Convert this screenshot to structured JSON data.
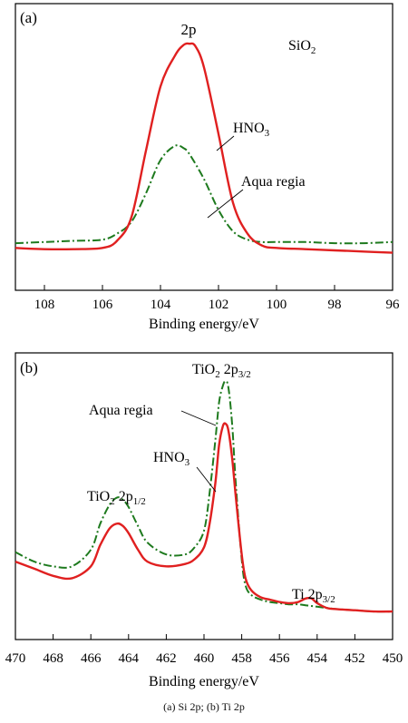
{
  "colors": {
    "hno3": "#e02020",
    "aqua_regia": "#1e7a1e",
    "axis": "#000000"
  },
  "caption": "(a) Si 2p; (b) Ti 2p",
  "chart_data": [
    {
      "type": "line",
      "panel_label": "(a)",
      "xlabel": "Binding energy/eV",
      "x_reversed": true,
      "xlim": [
        109,
        96
      ],
      "xticks": [
        108,
        106,
        104,
        102,
        100,
        98,
        96
      ],
      "y_ticks_shown": false,
      "ylim": [
        0,
        1.1
      ],
      "annotations": {
        "peak": "2p",
        "compound": "SiO",
        "compound_sub": "2",
        "hno3_label": "HNO",
        "hno3_label_sub": "3",
        "aqua_label": "Aqua regia"
      },
      "series": [
        {
          "name": "HNO3",
          "style": "solid",
          "x": [
            109,
            108,
            107,
            106,
            105.5,
            105,
            104.5,
            104,
            103.5,
            103.2,
            103,
            102.8,
            102.5,
            102,
            101.5,
            101,
            100.5,
            100,
            99,
            98,
            97,
            96
          ],
          "y": [
            0.14,
            0.135,
            0.135,
            0.14,
            0.17,
            0.27,
            0.55,
            0.82,
            0.95,
            0.995,
            1.0,
            0.99,
            0.9,
            0.62,
            0.33,
            0.2,
            0.15,
            0.14,
            0.135,
            0.13,
            0.125,
            0.12
          ]
        },
        {
          "name": "Aqua regia",
          "style": "dashdot",
          "x": [
            109,
            108,
            107,
            106,
            105.5,
            105,
            104.5,
            104,
            103.5,
            103.2,
            103,
            102.5,
            102,
            101.5,
            101,
            100.5,
            100,
            99,
            98,
            97,
            96
          ],
          "y": [
            0.16,
            0.165,
            0.17,
            0.175,
            0.2,
            0.25,
            0.37,
            0.51,
            0.57,
            0.56,
            0.535,
            0.43,
            0.3,
            0.21,
            0.175,
            0.165,
            0.165,
            0.165,
            0.16,
            0.16,
            0.165
          ]
        }
      ]
    },
    {
      "type": "line",
      "panel_label": "(b)",
      "xlabel": "Binding energy/eV",
      "x_reversed": true,
      "xlim": [
        470,
        450
      ],
      "xticks": [
        470,
        468,
        466,
        464,
        462,
        460,
        458,
        456,
        454,
        452,
        450
      ],
      "y_ticks_shown": false,
      "ylim": [
        0,
        1.1
      ],
      "annotations": {
        "peak_main": "TiO",
        "peak_main_sub": "2",
        "peak_main_orbital": "2p",
        "peak_main_orbital_sub": "3/2",
        "peak_minor": "TiO",
        "peak_minor_sub": "2",
        "peak_minor_orbital": "2p",
        "peak_minor_orbital_sub": "1/2",
        "metal_peak": "Ti 2p",
        "metal_peak_sub": "3/2",
        "aqua_label": "Aqua regia",
        "hno3_label": "HNO",
        "hno3_label_sub": "3"
      },
      "series": [
        {
          "name": "HNO3",
          "style": "solid",
          "x": [
            470,
            469,
            468,
            467,
            466,
            465.5,
            465,
            464.6,
            464.3,
            464,
            463.5,
            463,
            462,
            461,
            460.5,
            460,
            459.7,
            459.4,
            459.2,
            459,
            458.85,
            458.7,
            458.5,
            458.3,
            458,
            457.8,
            457.5,
            457,
            456.5,
            456,
            455.5,
            455,
            454.6,
            454.3,
            454,
            453.5,
            453,
            452,
            451,
            450
          ],
          "y": [
            0.29,
            0.26,
            0.23,
            0.22,
            0.27,
            0.36,
            0.43,
            0.45,
            0.44,
            0.41,
            0.34,
            0.29,
            0.27,
            0.28,
            0.3,
            0.35,
            0.45,
            0.62,
            0.78,
            0.86,
            0.87,
            0.84,
            0.72,
            0.55,
            0.32,
            0.22,
            0.17,
            0.14,
            0.13,
            0.12,
            0.115,
            0.12,
            0.135,
            0.135,
            0.115,
            0.095,
            0.09,
            0.085,
            0.08,
            0.08
          ]
        },
        {
          "name": "Aqua regia",
          "style": "dashdot",
          "x": [
            470,
            469,
            468,
            467,
            466,
            465.5,
            465,
            464.6,
            464.3,
            464,
            463.5,
            463,
            462,
            461,
            460.5,
            460,
            459.7,
            459.4,
            459.2,
            459,
            458.85,
            458.7,
            458.5,
            458.3,
            458,
            457.8,
            457.5,
            457,
            456.5,
            456,
            455.5,
            455,
            454.5,
            454,
            453.5,
            453,
            452,
            451,
            450
          ],
          "y": [
            0.33,
            0.29,
            0.27,
            0.27,
            0.34,
            0.45,
            0.53,
            0.56,
            0.55,
            0.52,
            0.44,
            0.37,
            0.32,
            0.32,
            0.35,
            0.42,
            0.58,
            0.8,
            0.96,
            1.03,
            1.05,
            1.02,
            0.86,
            0.6,
            0.3,
            0.19,
            0.15,
            0.13,
            0.12,
            0.115,
            0.11,
            0.11,
            0.105,
            0.1,
            0.095,
            0.09,
            0.085,
            0.08,
            0.08
          ]
        }
      ]
    }
  ]
}
